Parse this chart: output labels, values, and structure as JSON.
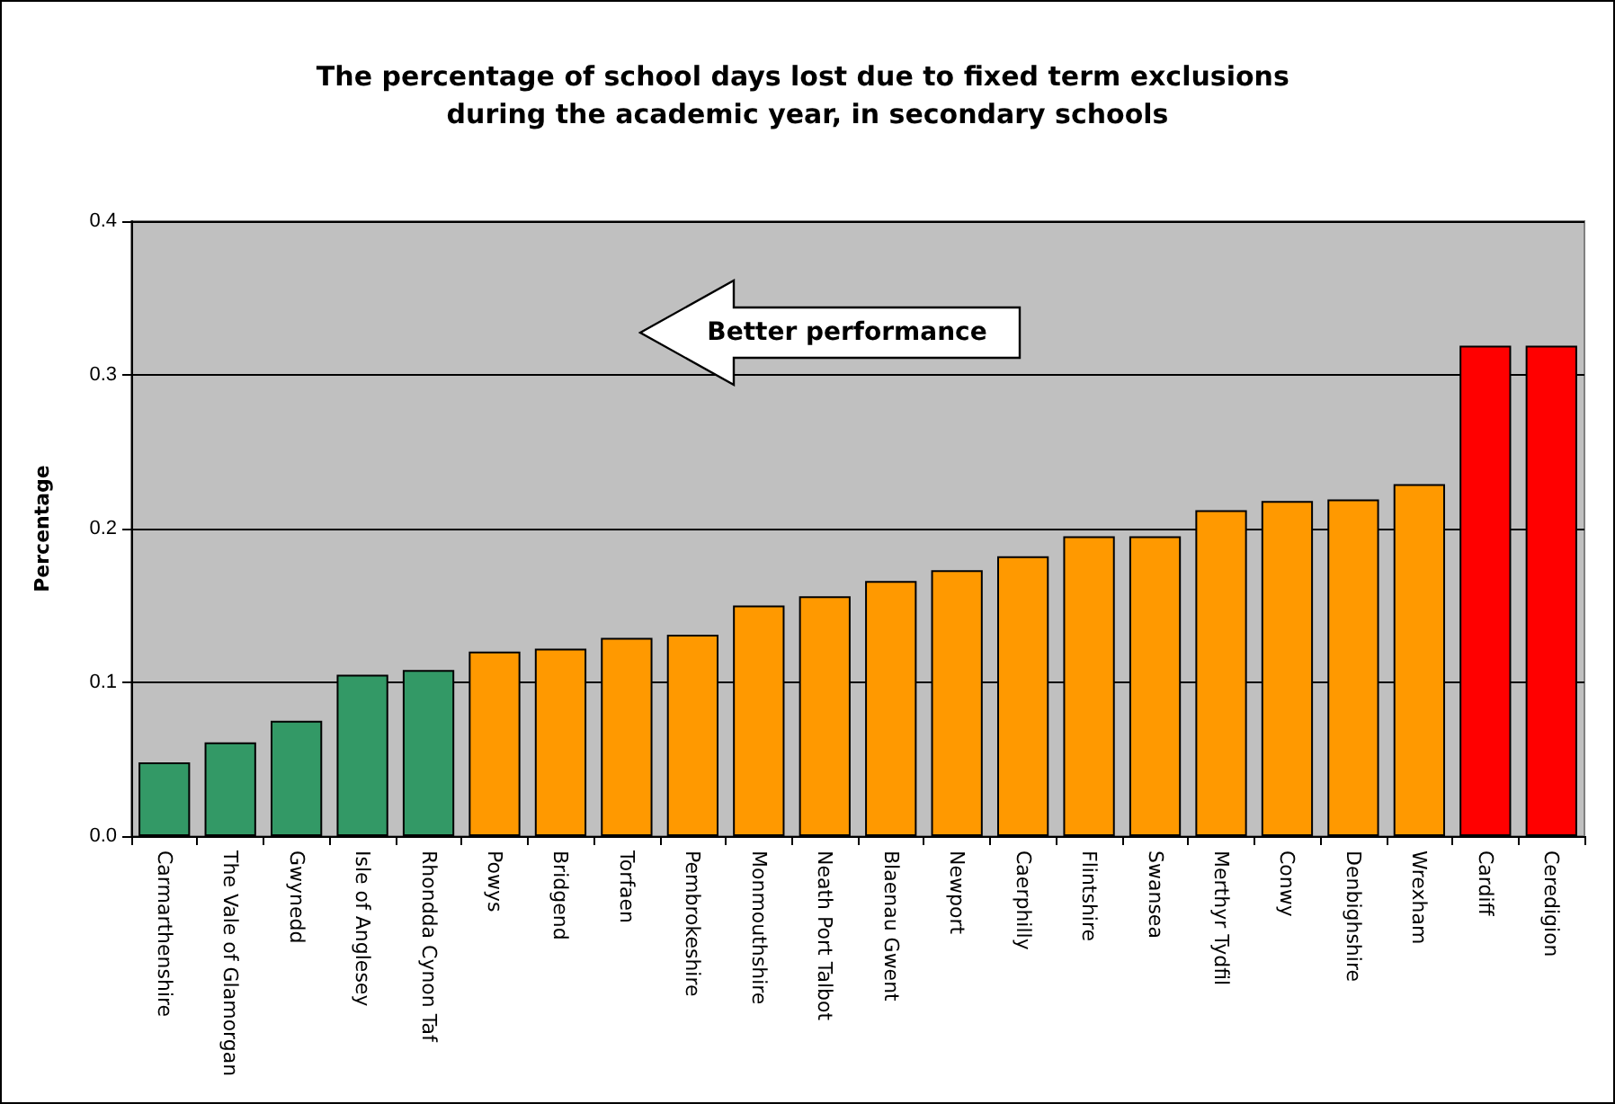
{
  "chart_data": {
    "type": "bar",
    "title": "The percentage of school days lost due to fixed term exclusions during the academic year, in secondary schools",
    "ylabel": "Percentage",
    "categories": [
      "Carmarthenshire",
      "The Vale of Glamorgan",
      "Gwynedd",
      "Isle of Anglesey",
      "Rhondda Cynon Taf",
      "Powys",
      "Bridgend",
      "Torfaen",
      "Pembrokeshire",
      "Monmouthshire",
      "Neath Port Talbot",
      "Blaenau Gwent",
      "Newport",
      "Caerphilly",
      "Flintshire",
      "Swansea",
      "Merthyr Tydfil",
      "Conwy",
      "Denbighshire",
      "Wrexham",
      "Cardiff",
      "Ceredigion"
    ],
    "values": [
      0.048,
      0.061,
      0.075,
      0.105,
      0.108,
      0.12,
      0.122,
      0.129,
      0.131,
      0.15,
      0.156,
      0.166,
      0.173,
      0.182,
      0.195,
      0.195,
      0.212,
      0.218,
      0.219,
      0.229,
      0.319,
      0.319
    ],
    "colors": [
      "#339966",
      "#339966",
      "#339966",
      "#339966",
      "#339966",
      "#ff9900",
      "#ff9900",
      "#ff9900",
      "#ff9900",
      "#ff9900",
      "#ff9900",
      "#ff9900",
      "#ff9900",
      "#ff9900",
      "#ff9900",
      "#ff9900",
      "#ff9900",
      "#ff9900",
      "#ff9900",
      "#ff9900",
      "#ff0000",
      "#ff0000"
    ],
    "ylim": [
      0,
      0.4
    ],
    "yticks": [
      {
        "value": 0,
        "label": "0.0"
      },
      {
        "value": 0.1,
        "label": "0.1"
      },
      {
        "value": 0.2,
        "label": "0.2"
      },
      {
        "value": 0.3,
        "label": "0.3"
      },
      {
        "value": 0.4,
        "label": "0.4"
      }
    ],
    "grid": "y",
    "annotations": [
      "Better performance"
    ]
  }
}
